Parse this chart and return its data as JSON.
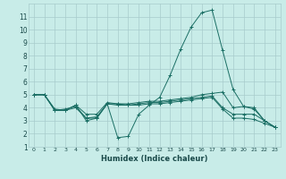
{
  "background_color": "#c8ece8",
  "grid_color": "#a8cccc",
  "line_color": "#1a6e64",
  "xlim": [
    -0.5,
    23.5
  ],
  "ylim": [
    1,
    12
  ],
  "xlabel": "Humidex (Indice chaleur)",
  "xticks": [
    0,
    1,
    2,
    3,
    4,
    5,
    6,
    7,
    8,
    9,
    10,
    11,
    12,
    13,
    14,
    15,
    16,
    17,
    18,
    19,
    20,
    21,
    22,
    23
  ],
  "yticks": [
    1,
    2,
    3,
    4,
    5,
    6,
    7,
    8,
    9,
    10,
    11
  ],
  "lines": [
    {
      "x": [
        0,
        1,
        2,
        3,
        4,
        5,
        6,
        7,
        8,
        9,
        10,
        11,
        12,
        13,
        14,
        15,
        16,
        17,
        18,
        19,
        20,
        21,
        22,
        23
      ],
      "y": [
        5,
        5,
        3.8,
        3.8,
        4.2,
        3.0,
        3.2,
        4.3,
        1.7,
        1.8,
        3.5,
        4.2,
        4.8,
        6.5,
        8.5,
        10.2,
        11.3,
        11.5,
        8.4,
        5.4,
        4.1,
        4.0,
        3.0,
        2.5
      ]
    },
    {
      "x": [
        0,
        1,
        2,
        3,
        4,
        5,
        6,
        7,
        8,
        9,
        10,
        11,
        12,
        13,
        14,
        15,
        16,
        17,
        18,
        19,
        20,
        21,
        22,
        23
      ],
      "y": [
        5,
        5,
        3.8,
        3.8,
        4.2,
        3.5,
        3.5,
        4.4,
        4.3,
        4.3,
        4.4,
        4.5,
        4.5,
        4.6,
        4.7,
        4.8,
        5.0,
        5.1,
        5.2,
        4.0,
        4.1,
        3.9,
        3.0,
        2.5
      ]
    },
    {
      "x": [
        0,
        1,
        2,
        3,
        4,
        5,
        6,
        7,
        8,
        9,
        10,
        11,
        12,
        13,
        14,
        15,
        16,
        17,
        18,
        19,
        20,
        21,
        22,
        23
      ],
      "y": [
        5,
        5,
        3.8,
        3.9,
        4.1,
        3.2,
        3.3,
        4.3,
        4.3,
        4.2,
        4.3,
        4.4,
        4.4,
        4.5,
        4.6,
        4.7,
        4.8,
        4.9,
        4.0,
        3.5,
        3.5,
        3.5,
        3.0,
        2.5
      ]
    },
    {
      "x": [
        0,
        1,
        2,
        3,
        4,
        5,
        6,
        7,
        8,
        9,
        10,
        11,
        12,
        13,
        14,
        15,
        16,
        17,
        18,
        19,
        20,
        21,
        22,
        23
      ],
      "y": [
        5,
        5,
        3.9,
        3.8,
        4.0,
        3.2,
        3.2,
        4.3,
        4.2,
        4.2,
        4.2,
        4.3,
        4.3,
        4.4,
        4.5,
        4.6,
        4.7,
        4.8,
        3.9,
        3.2,
        3.2,
        3.1,
        2.8,
        2.5
      ]
    }
  ]
}
